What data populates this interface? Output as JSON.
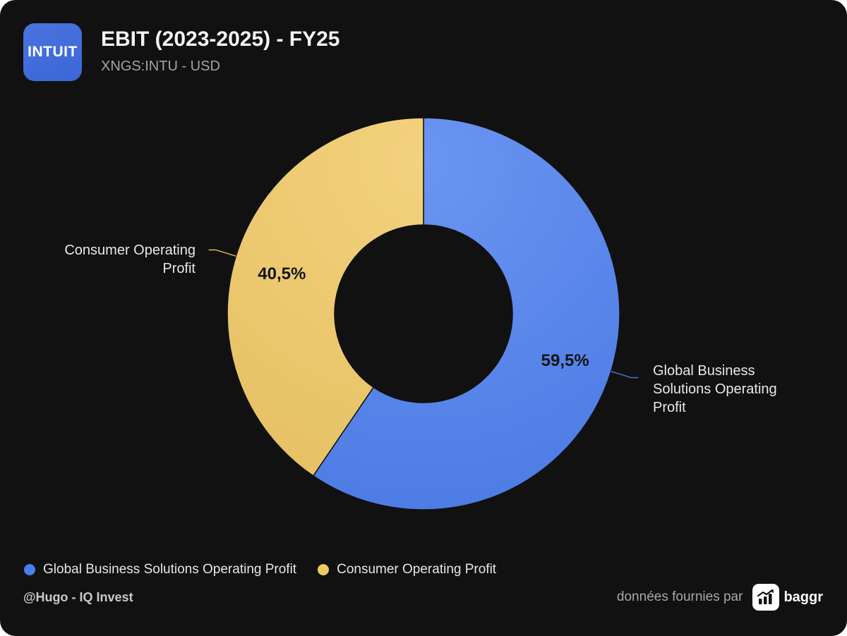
{
  "header": {
    "logo_text": "INTUIT",
    "logo_color": "#3a67d9"
  },
  "chart_data": {
    "type": "pie",
    "donut": true,
    "title": "EBIT (2023-2025) - FY25",
    "subtitle": "XNGS:INTU - USD",
    "slices": [
      {
        "name": "Global Business Solutions Operating Profit",
        "value": 59.5,
        "label": "59,5%",
        "color": "#4a7eef"
      },
      {
        "name": "Consumer Operating Profit",
        "value": 40.5,
        "label": "40,5%",
        "color": "#f0c862"
      }
    ],
    "legend_position": "bottom-left"
  },
  "footer": {
    "author": "@Hugo - IQ Invest",
    "source_prefix": "données fournies par",
    "source_brand": "baggr",
    "source_icon": "bar-chart-arrow-icon"
  }
}
